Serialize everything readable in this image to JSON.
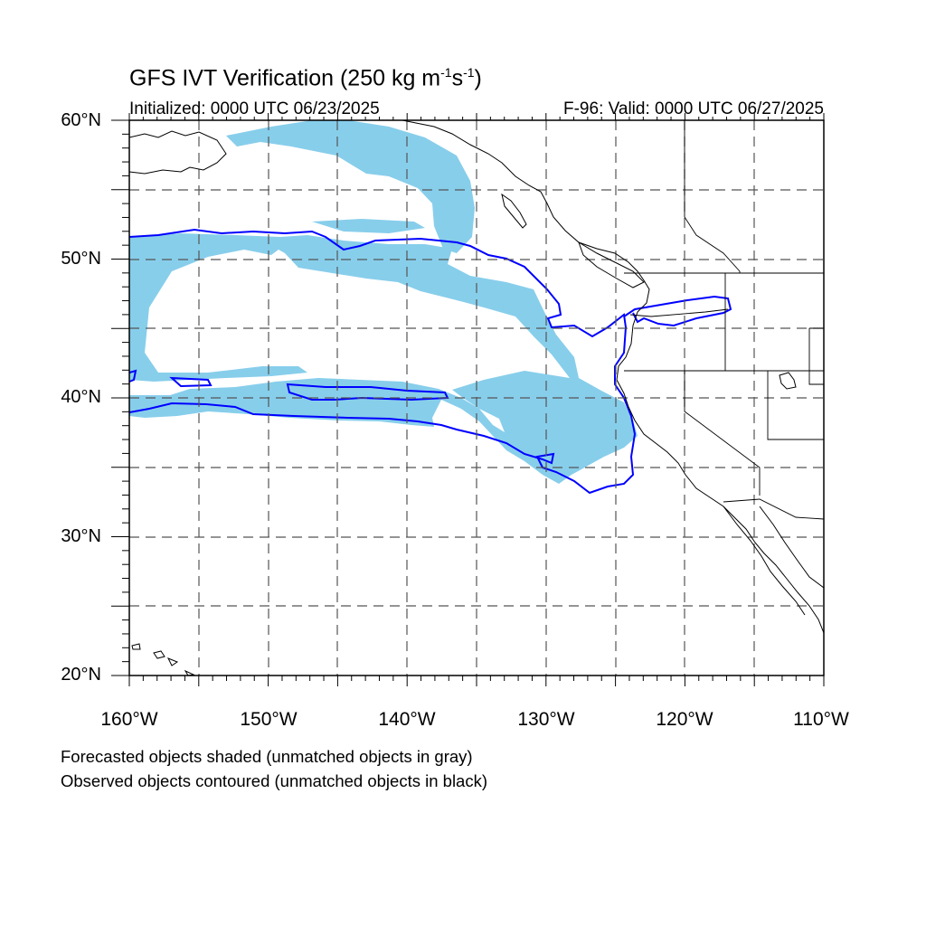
{
  "header": {
    "title_main": "GFS IVT Verification (250 kg m",
    "title_exp1": "-1",
    "title_mid": "s",
    "title_exp2": "-1",
    "title_end": ")",
    "initialized": "Initialized: 0000 UTC 06/23/2025",
    "valid": "F-96: Valid: 0000 UTC 06/27/2025"
  },
  "axes": {
    "lat_labels": [
      "60°N",
      "50°N",
      "40°N",
      "30°N",
      "20°N"
    ],
    "lon_labels": [
      "160°W",
      "150°W",
      "140°W",
      "130°W",
      "120°W",
      "110°W"
    ],
    "lat_range": [
      20,
      60
    ],
    "lon_range": [
      -160,
      -110
    ],
    "grid": "dashed every 5 degrees"
  },
  "legend": {
    "line1": "Forecasted objects shaded (unmatched objects in gray)",
    "line2": "Observed objects contoured (unmatched objects in black)"
  },
  "colors": {
    "forecast_fill": "#87ceeb",
    "observed_contour": "#0000ff",
    "coastline": "#000000",
    "grid": "#555555"
  }
}
